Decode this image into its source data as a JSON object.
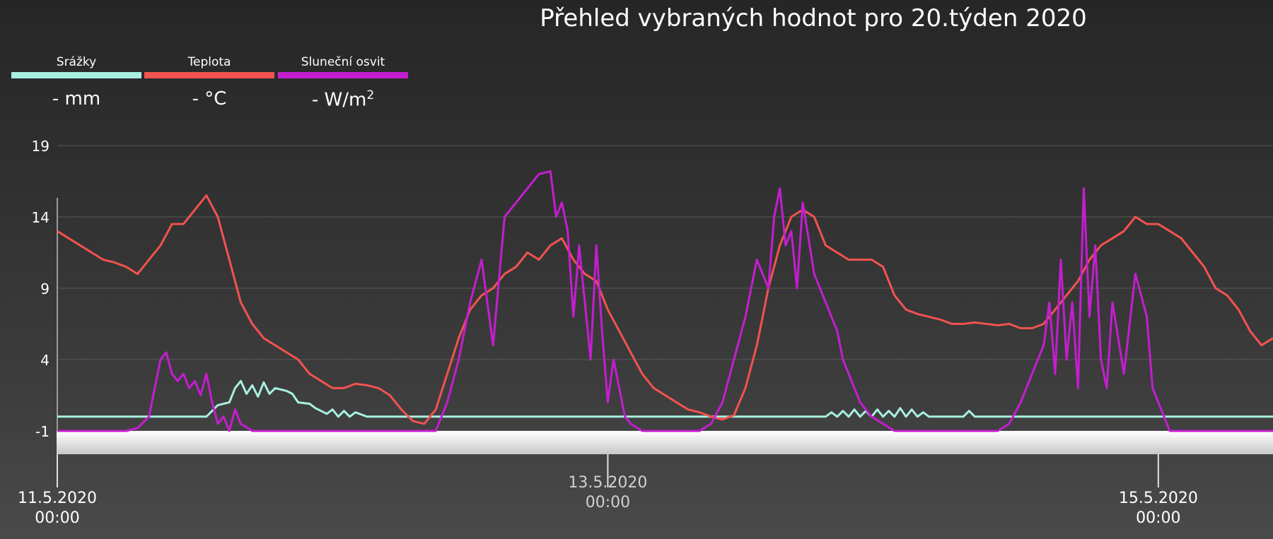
{
  "title": "Přehled vybraných hodnot pro 20.týden 2020",
  "legend": [
    {
      "name": "Srážky",
      "value": "- mm",
      "color": "#a8f0e0"
    },
    {
      "name": "Teplota",
      "value": "- °C",
      "color": "#f2534f"
    },
    {
      "name": "Sluneční osvit",
      "value": "- W/m",
      "sup": "2",
      "color": "#c41ed0"
    }
  ],
  "chart_data": {
    "type": "line",
    "title": "Přehled vybraných hodnot pro 20.týden 2020",
    "y_ticks": [
      19,
      14,
      9,
      4,
      -1
    ],
    "ylim": [
      -1,
      19
    ],
    "xlim": [
      0,
      106
    ],
    "x_unit": "hours since 11.5.2020 00:00",
    "x_ticks": [
      {
        "x": 0,
        "date": "11.5.2020",
        "time": "00:00"
      },
      {
        "x": 48,
        "date": "13.5.2020",
        "time": "00:00"
      },
      {
        "x": 96,
        "date": "15.5.2020",
        "time": "00:00"
      }
    ],
    "grid": true,
    "legend_position": "top-left",
    "series": [
      {
        "name": "Srážky",
        "color": "#a8f0e0",
        "points": [
          [
            0,
            0
          ],
          [
            10,
            0
          ],
          [
            13,
            0
          ],
          [
            14,
            0.8
          ],
          [
            15,
            1
          ],
          [
            15.5,
            2
          ],
          [
            16,
            2.5
          ],
          [
            16.5,
            1.6
          ],
          [
            17,
            2.2
          ],
          [
            17.5,
            1.4
          ],
          [
            18,
            2.4
          ],
          [
            18.5,
            1.6
          ],
          [
            19,
            2
          ],
          [
            20,
            1.8
          ],
          [
            20.5,
            1.6
          ],
          [
            21,
            1
          ],
          [
            22,
            0.9
          ],
          [
            22.5,
            0.6
          ],
          [
            23,
            0.4
          ],
          [
            23.5,
            0.2
          ],
          [
            24,
            0.5
          ],
          [
            24.5,
            0
          ],
          [
            25,
            0.4
          ],
          [
            25.5,
            0
          ],
          [
            26,
            0.3
          ],
          [
            27,
            0
          ],
          [
            67,
            0
          ],
          [
            67.5,
            0.3
          ],
          [
            68,
            0
          ],
          [
            68.5,
            0.4
          ],
          [
            69,
            0
          ],
          [
            69.5,
            0.5
          ],
          [
            70,
            0
          ],
          [
            70.5,
            0.4
          ],
          [
            71,
            0
          ],
          [
            71.5,
            0.5
          ],
          [
            72,
            0
          ],
          [
            72.5,
            0.4
          ],
          [
            73,
            0
          ],
          [
            73.5,
            0.6
          ],
          [
            74,
            0
          ],
          [
            74.5,
            0.5
          ],
          [
            75,
            0
          ],
          [
            75.5,
            0.3
          ],
          [
            76,
            0
          ],
          [
            79,
            0
          ],
          [
            79.5,
            0.4
          ],
          [
            80,
            0
          ],
          [
            106,
            0
          ]
        ]
      },
      {
        "name": "Teplota",
        "color": "#f2534f",
        "points": [
          [
            0,
            13
          ],
          [
            1,
            12.5
          ],
          [
            2,
            12
          ],
          [
            3,
            11.5
          ],
          [
            4,
            11
          ],
          [
            5,
            10.8
          ],
          [
            6,
            10.5
          ],
          [
            7,
            10
          ],
          [
            8,
            11
          ],
          [
            9,
            12
          ],
          [
            10,
            13.5
          ],
          [
            11,
            13.5
          ],
          [
            12,
            14.5
          ],
          [
            13,
            15.5
          ],
          [
            14,
            14
          ],
          [
            15,
            11
          ],
          [
            16,
            8
          ],
          [
            17,
            6.5
          ],
          [
            18,
            5.5
          ],
          [
            19,
            5
          ],
          [
            20,
            4.5
          ],
          [
            21,
            4
          ],
          [
            22,
            3
          ],
          [
            23,
            2.5
          ],
          [
            24,
            2
          ],
          [
            25,
            2
          ],
          [
            26,
            2.3
          ],
          [
            27,
            2.2
          ],
          [
            28,
            2
          ],
          [
            29,
            1.5
          ],
          [
            30,
            0.5
          ],
          [
            31,
            -0.3
          ],
          [
            32,
            -0.5
          ],
          [
            33,
            0.5
          ],
          [
            34,
            3
          ],
          [
            35,
            5.5
          ],
          [
            36,
            7.5
          ],
          [
            37,
            8.5
          ],
          [
            38,
            9
          ],
          [
            39,
            10
          ],
          [
            40,
            10.5
          ],
          [
            41,
            11.5
          ],
          [
            42,
            11
          ],
          [
            43,
            12
          ],
          [
            44,
            12.5
          ],
          [
            45,
            11
          ],
          [
            46,
            10
          ],
          [
            47,
            9.5
          ],
          [
            48,
            7.5
          ],
          [
            49,
            6
          ],
          [
            50,
            4.5
          ],
          [
            51,
            3
          ],
          [
            52,
            2
          ],
          [
            53,
            1.5
          ],
          [
            54,
            1
          ],
          [
            55,
            0.5
          ],
          [
            56,
            0.3
          ],
          [
            57,
            0
          ],
          [
            58,
            -0.2
          ],
          [
            59,
            0.1
          ],
          [
            60,
            2
          ],
          [
            61,
            5
          ],
          [
            62,
            9
          ],
          [
            63,
            12
          ],
          [
            64,
            14
          ],
          [
            65,
            14.5
          ],
          [
            66,
            14
          ],
          [
            67,
            12
          ],
          [
            68,
            11.5
          ],
          [
            69,
            11
          ],
          [
            70,
            11
          ],
          [
            71,
            11
          ],
          [
            72,
            10.5
          ],
          [
            73,
            8.5
          ],
          [
            74,
            7.5
          ],
          [
            75,
            7.2
          ],
          [
            76,
            7
          ],
          [
            77,
            6.8
          ],
          [
            78,
            6.5
          ],
          [
            79,
            6.5
          ],
          [
            80,
            6.6
          ],
          [
            81,
            6.5
          ],
          [
            82,
            6.4
          ],
          [
            83,
            6.5
          ],
          [
            84,
            6.2
          ],
          [
            85,
            6.2
          ],
          [
            86,
            6.5
          ],
          [
            87,
            7.5
          ],
          [
            88,
            8.5
          ],
          [
            89,
            9.5
          ],
          [
            90,
            11
          ],
          [
            91,
            12
          ],
          [
            92,
            12.5
          ],
          [
            93,
            13
          ],
          [
            94,
            14
          ],
          [
            95,
            13.5
          ],
          [
            96,
            13.5
          ],
          [
            97,
            13
          ],
          [
            98,
            12.5
          ],
          [
            99,
            11.5
          ],
          [
            100,
            10.5
          ],
          [
            101,
            9
          ],
          [
            102,
            8.5
          ],
          [
            103,
            7.5
          ],
          [
            104,
            6
          ],
          [
            105,
            5
          ],
          [
            106,
            5.5
          ]
        ]
      },
      {
        "name": "Sluneční osvit",
        "color": "#c41ed0",
        "points": [
          [
            0,
            -1
          ],
          [
            6,
            -1
          ],
          [
            7,
            -0.8
          ],
          [
            8,
            0
          ],
          [
            8.5,
            2
          ],
          [
            9,
            4
          ],
          [
            9.5,
            4.5
          ],
          [
            10,
            3
          ],
          [
            10.5,
            2.5
          ],
          [
            11,
            3
          ],
          [
            11.5,
            2
          ],
          [
            12,
            2.5
          ],
          [
            12.5,
            1.5
          ],
          [
            13,
            3
          ],
          [
            13.5,
            1
          ],
          [
            14,
            -0.5
          ],
          [
            14.5,
            0
          ],
          [
            15,
            -1
          ],
          [
            15.5,
            0.5
          ],
          [
            16,
            -0.5
          ],
          [
            17,
            -1
          ],
          [
            33,
            -1
          ],
          [
            34,
            1
          ],
          [
            35,
            4
          ],
          [
            36,
            8
          ],
          [
            37,
            11
          ],
          [
            38,
            5
          ],
          [
            39,
            14
          ],
          [
            40,
            15
          ],
          [
            41,
            16
          ],
          [
            42,
            17
          ],
          [
            43,
            17.2
          ],
          [
            43.5,
            14
          ],
          [
            44,
            15
          ],
          [
            44.5,
            13
          ],
          [
            45,
            7
          ],
          [
            45.5,
            12
          ],
          [
            46,
            8
          ],
          [
            46.5,
            4
          ],
          [
            47,
            12
          ],
          [
            47.5,
            6
          ],
          [
            48,
            1
          ],
          [
            48.5,
            4
          ],
          [
            49,
            2
          ],
          [
            49.5,
            0
          ],
          [
            50,
            -0.5
          ],
          [
            51,
            -1
          ],
          [
            56,
            -1
          ],
          [
            57,
            -0.5
          ],
          [
            58,
            1
          ],
          [
            59,
            4
          ],
          [
            60,
            7
          ],
          [
            61,
            11
          ],
          [
            62,
            9
          ],
          [
            62.5,
            14
          ],
          [
            63,
            16
          ],
          [
            63.5,
            12
          ],
          [
            64,
            13
          ],
          [
            64.5,
            9
          ],
          [
            65,
            15
          ],
          [
            66,
            10
          ],
          [
            67,
            8
          ],
          [
            68,
            6
          ],
          [
            68.5,
            4
          ],
          [
            69,
            3
          ],
          [
            70,
            1
          ],
          [
            71,
            0
          ],
          [
            72,
            -0.5
          ],
          [
            73,
            -1
          ],
          [
            82,
            -1
          ],
          [
            83,
            -0.5
          ],
          [
            84,
            1
          ],
          [
            85,
            3
          ],
          [
            86,
            5
          ],
          [
            86.5,
            8
          ],
          [
            87,
            3
          ],
          [
            87.5,
            11
          ],
          [
            88,
            4
          ],
          [
            88.5,
            8
          ],
          [
            89,
            2
          ],
          [
            89.5,
            16
          ],
          [
            90,
            7
          ],
          [
            90.5,
            12
          ],
          [
            91,
            4
          ],
          [
            91.5,
            2
          ],
          [
            92,
            8
          ],
          [
            93,
            3
          ],
          [
            94,
            10
          ],
          [
            95,
            7
          ],
          [
            95.5,
            2
          ],
          [
            96,
            1
          ],
          [
            97,
            -1
          ],
          [
            106,
            -1
          ]
        ]
      }
    ]
  }
}
